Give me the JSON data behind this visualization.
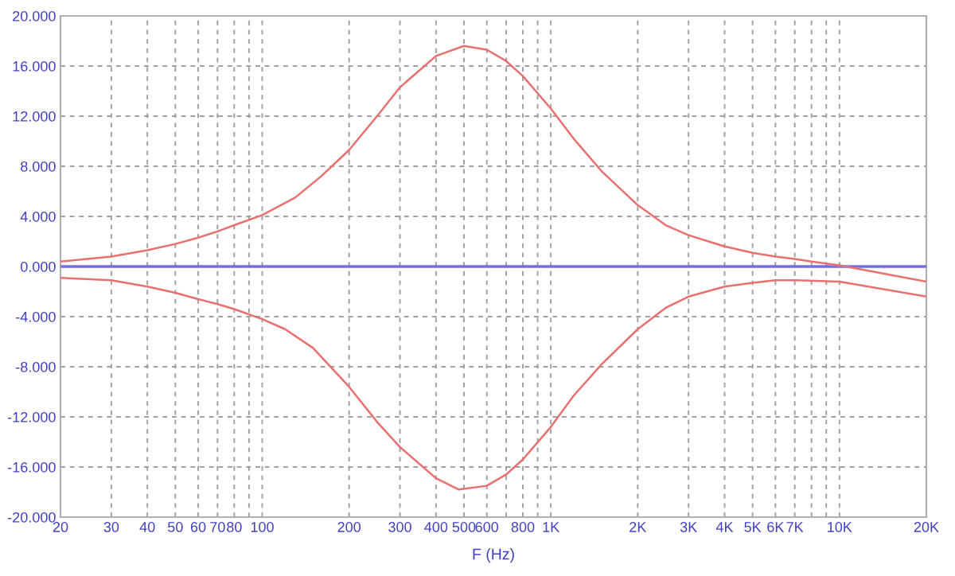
{
  "chart_data": {
    "type": "line",
    "xlabel": "F (Hz)",
    "log": "x",
    "grid": true,
    "marker": "none",
    "line_style": "solid",
    "xlim": [
      20,
      20000
    ],
    "ylim": [
      -20,
      20
    ],
    "xticks": [
      20,
      30,
      40,
      50,
      60,
      70,
      80,
      {
        "value": 90,
        "label": null
      },
      100,
      200,
      300,
      400,
      500,
      600,
      {
        "value": 700,
        "label": null
      },
      800,
      {
        "value": 900,
        "label": null
      },
      {
        "value": 1000,
        "label": "1K"
      },
      {
        "value": 2000,
        "label": "2K"
      },
      {
        "value": 3000,
        "label": "3K"
      },
      {
        "value": 4000,
        "label": "4K"
      },
      {
        "value": 5000,
        "label": "5K"
      },
      {
        "value": 6000,
        "label": "6K"
      },
      {
        "value": 7000,
        "label": "7K"
      },
      {
        "value": 8000,
        "label": null
      },
      {
        "value": 9000,
        "label": null
      },
      {
        "value": 10000,
        "label": "10K"
      },
      {
        "value": 20000,
        "label": "20K"
      }
    ],
    "yticks": [
      {
        "value": -20,
        "label": "-20.000"
      },
      {
        "value": -16,
        "label": "-16.000"
      },
      {
        "value": -12,
        "label": "-12.000"
      },
      {
        "value": -8,
        "label": "-8.000"
      },
      {
        "value": -4,
        "label": "-4.000"
      },
      {
        "value": 0,
        "label": "0.000"
      },
      {
        "value": 4,
        "label": "4.000"
      },
      {
        "value": 8,
        "label": "8.000"
      },
      {
        "value": 12,
        "label": "12.000"
      },
      {
        "value": 16,
        "label": "16.000"
      },
      {
        "value": 20,
        "label": "20.000"
      }
    ],
    "ref_lines": [
      {
        "axis": "y",
        "value": 0,
        "color": "#6f6fe8"
      }
    ],
    "series": [
      {
        "color": "#e87070",
        "x": [
          20,
          30,
          40,
          50,
          60,
          70,
          80,
          100,
          130,
          160,
          200,
          250,
          300,
          400,
          500,
          600,
          700,
          800,
          1000,
          1200,
          1500,
          2000,
          2500,
          3000,
          4000,
          5000,
          6000,
          7000,
          8000,
          10000,
          13000,
          20000
        ],
        "values": [
          0.4,
          0.8,
          1.3,
          1.8,
          2.3,
          2.8,
          3.3,
          4.1,
          5.5,
          7.2,
          9.3,
          12,
          14.3,
          16.8,
          17.6,
          17.3,
          16.4,
          15.2,
          12.6,
          10.2,
          7.6,
          4.9,
          3.3,
          2.5,
          1.6,
          1.1,
          0.8,
          0.6,
          0.4,
          0.1,
          -0.4,
          -1.2
        ]
      },
      {
        "color": "#e87070",
        "x": [
          20,
          30,
          40,
          50,
          60,
          70,
          80,
          100,
          120,
          150,
          200,
          250,
          300,
          400,
          480,
          600,
          700,
          800,
          1000,
          1200,
          1500,
          2000,
          2500,
          3000,
          4000,
          5000,
          6000,
          7000,
          10000,
          20000
        ],
        "values": [
          -0.9,
          -1.1,
          -1.6,
          -2.1,
          -2.6,
          -3.0,
          -3.4,
          -4.2,
          -5.0,
          -6.5,
          -9.6,
          -12.4,
          -14.4,
          -16.9,
          -17.8,
          -17.5,
          -16.6,
          -15.4,
          -12.8,
          -10.3,
          -7.8,
          -5.0,
          -3.3,
          -2.4,
          -1.6,
          -1.3,
          -1.1,
          -1.1,
          -1.2,
          -2.4
        ]
      }
    ]
  }
}
